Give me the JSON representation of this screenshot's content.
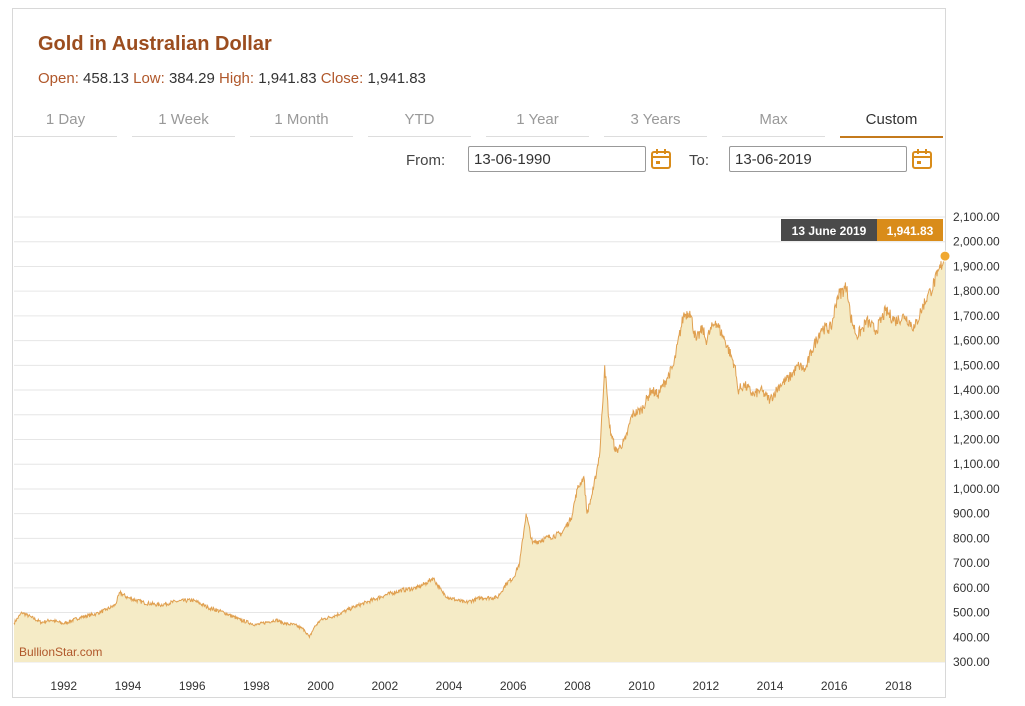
{
  "header": {
    "title": "Gold in Australian Dollar",
    "open_label": "Open:",
    "open_value": "458.13",
    "low_label": "Low:",
    "low_value": "384.29",
    "high_label": "High:",
    "high_value": "1,941.83",
    "close_label": "Close:",
    "close_value": "1,941.83"
  },
  "tabs": [
    {
      "label": "1 Day"
    },
    {
      "label": "1 Week"
    },
    {
      "label": "1 Month"
    },
    {
      "label": "YTD"
    },
    {
      "label": "1 Year"
    },
    {
      "label": "3 Years"
    },
    {
      "label": "Max"
    },
    {
      "label": "Custom",
      "active": true
    }
  ],
  "dates": {
    "from_label": "From:",
    "from_value": "13-06-1990",
    "to_label": "To:",
    "to_value": "13-06-2019",
    "icon": "calendar-icon"
  },
  "tooltip": {
    "date": "13 June 2019",
    "value": "1,941.83"
  },
  "watermark": "BullionStar.com",
  "colors": {
    "accent": "#c47a1c",
    "title": "#9b4d1f",
    "line": "#e0a050",
    "fill": "#f5ebc6",
    "tooltip_date_bg": "#4a4a4a",
    "tooltip_value_bg": "#d98c1a"
  },
  "chart_data": {
    "type": "area",
    "title": "Gold in Australian Dollar",
    "xlabel": "",
    "ylabel": "",
    "xlim": [
      1990.45,
      2019.45
    ],
    "ylim": [
      300,
      2100
    ],
    "grid": true,
    "x_ticks": [
      "1992",
      "1994",
      "1996",
      "1998",
      "2000",
      "2002",
      "2004",
      "2006",
      "2008",
      "2010",
      "2012",
      "2014",
      "2016",
      "2018"
    ],
    "y_ticks": [
      "300.00",
      "400.00",
      "500.00",
      "600.00",
      "700.00",
      "800.00",
      "900.00",
      "1,000.00",
      "1,100.00",
      "1,200.00",
      "1,300.00",
      "1,400.00",
      "1,500.00",
      "1,600.00",
      "1,700.00",
      "1,800.00",
      "1,900.00",
      "2,000.00",
      "2,100.00"
    ],
    "series": [
      {
        "x": [
          1990.45,
          1990.7,
          1991.0,
          1991.3,
          1991.6,
          1992.0,
          1992.5,
          1993.0,
          1993.3,
          1993.6,
          1993.75,
          1994.0,
          1994.5,
          1995.0,
          1995.5,
          1996.0,
          1996.2,
          1996.5,
          1997.0,
          1997.5,
          1998.0,
          1998.3,
          1998.6,
          1998.9,
          1999.2,
          1999.5,
          1999.65,
          1999.8,
          2000.0,
          2000.5,
          2001.0,
          2001.5,
          2002.0,
          2002.5,
          2003.0,
          2003.3,
          2003.5,
          2003.8,
          2004.0,
          2004.5,
          2005.0,
          2005.5,
          2005.8,
          2006.0,
          2006.2,
          2006.4,
          2006.6,
          2007.0,
          2007.5,
          2007.8,
          2008.0,
          2008.2,
          2008.3,
          2008.5,
          2008.7,
          2008.85,
          2009.0,
          2009.2,
          2009.5,
          2009.7,
          2010.0,
          2010.3,
          2010.5,
          2010.8,
          2011.0,
          2011.3,
          2011.5,
          2011.7,
          2011.9,
          2012.0,
          2012.3,
          2012.6,
          2012.9,
          2013.0,
          2013.2,
          2013.5,
          2013.7,
          2014.0,
          2014.3,
          2014.6,
          2014.9,
          2015.1,
          2015.3,
          2015.6,
          2015.9,
          2016.1,
          2016.4,
          2016.5,
          2016.7,
          2016.9,
          2017.0,
          2017.3,
          2017.6,
          2017.9,
          2018.2,
          2018.5,
          2018.7,
          2018.9,
          2019.0,
          2019.2,
          2019.45
        ],
        "y": [
          458,
          500,
          480,
          460,
          470,
          455,
          480,
          495,
          510,
          530,
          580,
          560,
          540,
          530,
          545,
          550,
          540,
          520,
          500,
          470,
          450,
          460,
          470,
          455,
          450,
          430,
          400,
          440,
          470,
          490,
          520,
          545,
          570,
          590,
          600,
          620,
          640,
          580,
          560,
          540,
          560,
          560,
          620,
          640,
          700,
          900,
          780,
          800,
          820,
          880,
          1000,
          1050,
          900,
          1000,
          1150,
          1500,
          1250,
          1150,
          1200,
          1300,
          1320,
          1400,
          1380,
          1450,
          1500,
          1700,
          1720,
          1600,
          1650,
          1600,
          1680,
          1600,
          1500,
          1400,
          1420,
          1380,
          1400,
          1360,
          1420,
          1450,
          1500,
          1480,
          1560,
          1650,
          1650,
          1780,
          1820,
          1700,
          1620,
          1650,
          1680,
          1640,
          1720,
          1680,
          1700,
          1650,
          1720,
          1780,
          1800,
          1860,
          1941.83
        ]
      }
    ]
  }
}
